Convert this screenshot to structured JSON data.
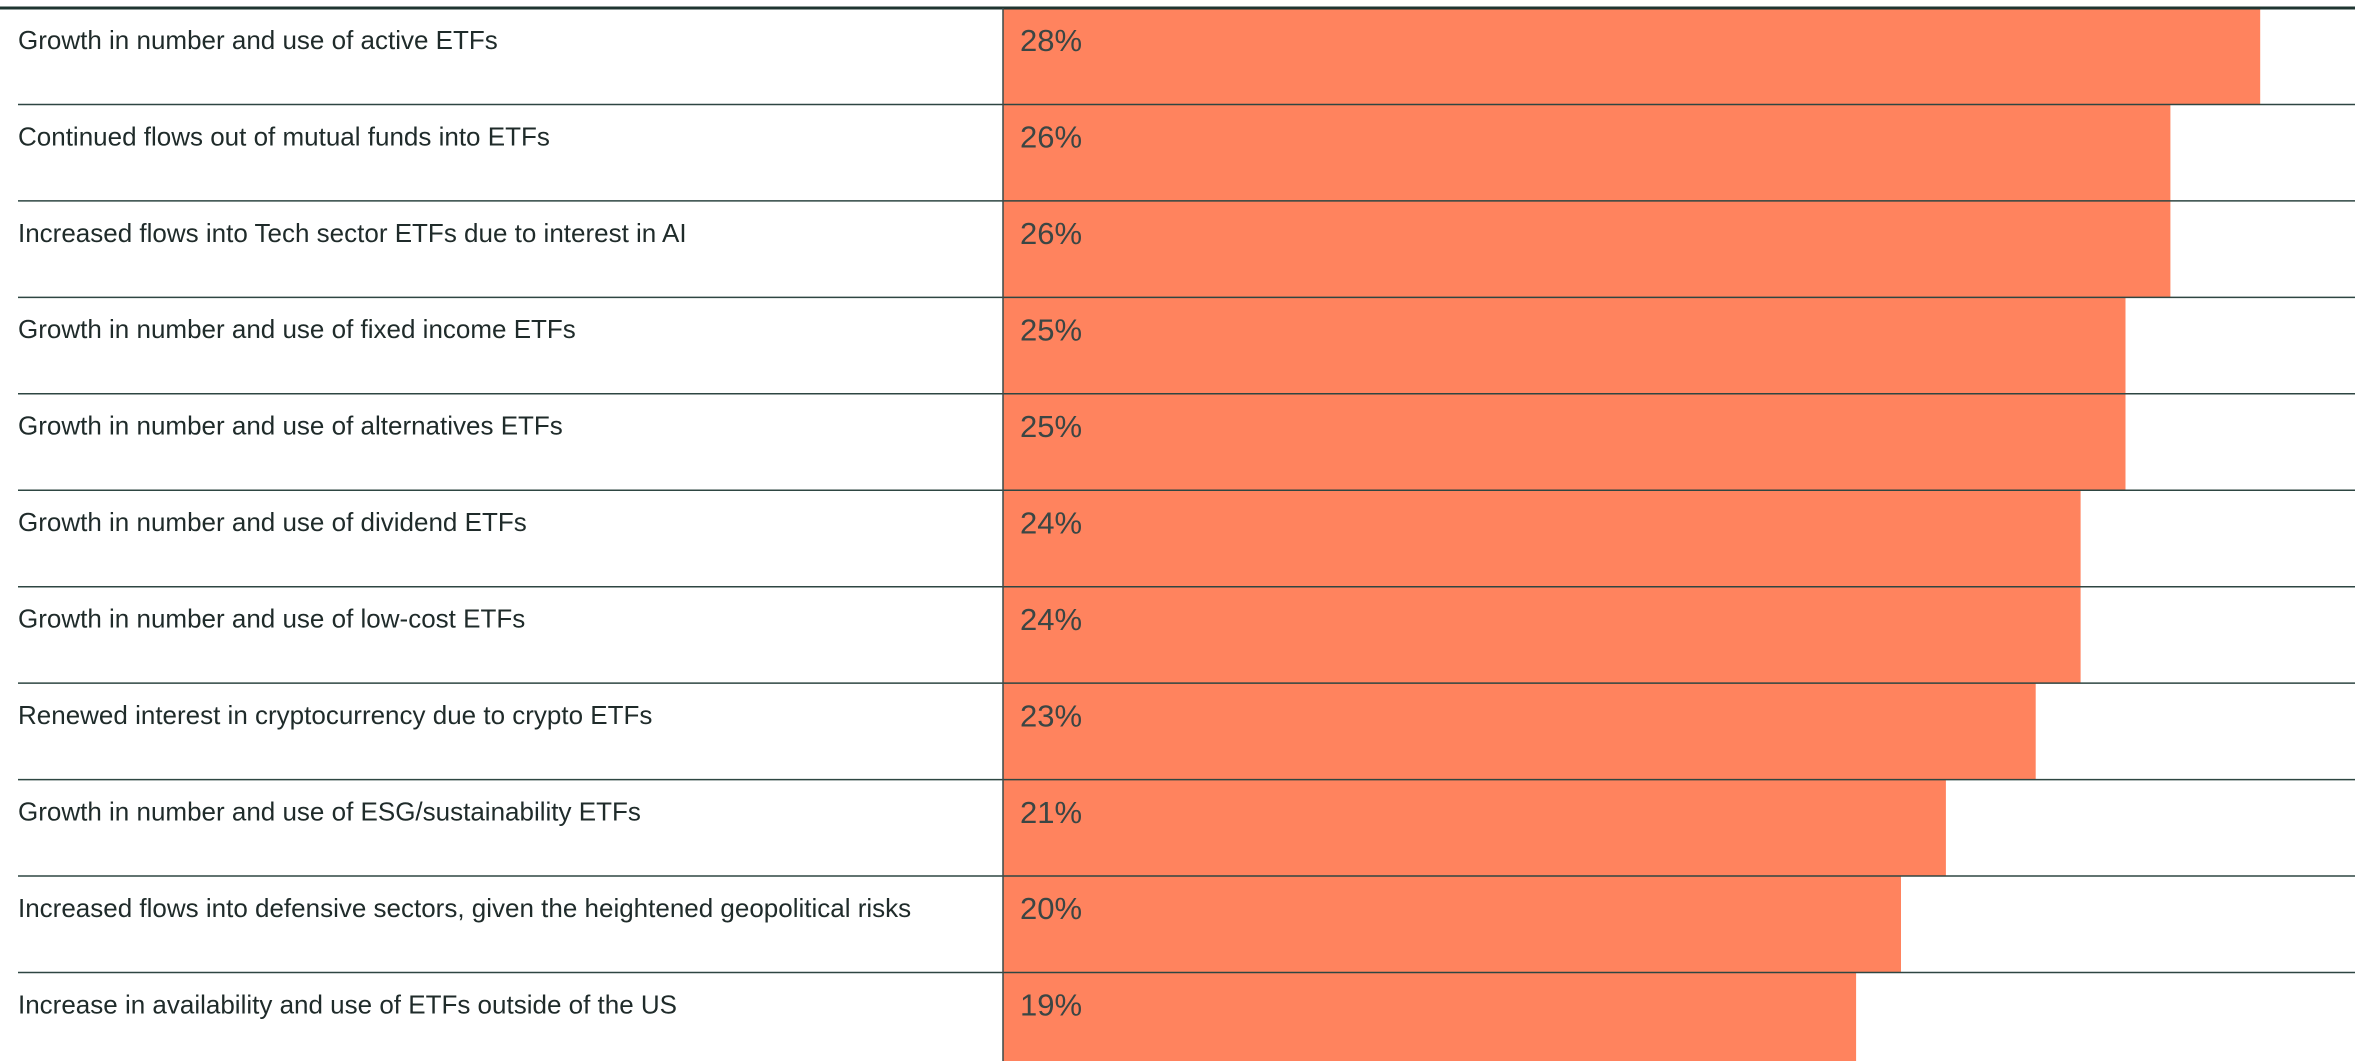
{
  "chart_data": {
    "type": "bar",
    "orientation": "horizontal",
    "categories": [
      "Growth in number and use of active ETFs",
      "Continued flows out of mutual funds into ETFs",
      "Increased flows into Tech sector ETFs due to interest in AI",
      "Growth in number and use of fixed income ETFs",
      "Growth in number and use of alternatives ETFs",
      "Growth in number and use of dividend ETFs",
      "Growth in number and use of low-cost ETFs",
      "Renewed interest in cryptocurrency due to crypto ETFs",
      "Growth in number and use of ESG/sustainability ETFs",
      "Increased flows into defensive sectors, given the heightened geopolitical risks",
      "Increase in availability and use of ETFs outside of the US"
    ],
    "values": [
      28,
      26,
      26,
      25,
      25,
      24,
      24,
      23,
      21,
      20,
      19
    ],
    "value_labels": [
      "28%",
      "26%",
      "26%",
      "25%",
      "25%",
      "24%",
      "24%",
      "23%",
      "21%",
      "20%",
      "19%"
    ],
    "color": "#ff835e"
  }
}
